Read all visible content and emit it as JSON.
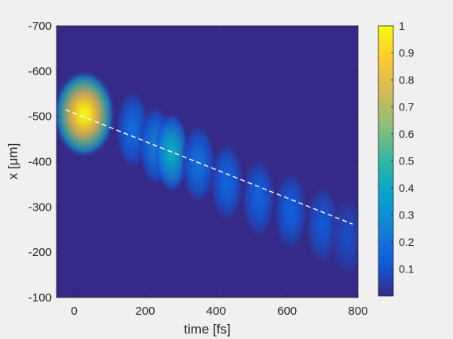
{
  "chart_data": {
    "type": "heatmap",
    "xlabel": "time [fs]",
    "ylabel": "x [μm]",
    "xlim": [
      -50,
      800
    ],
    "ylim": [
      -700,
      -100
    ],
    "y_direction": "reversed",
    "x_ticks": [
      0,
      200,
      400,
      600,
      800
    ],
    "y_ticks": [
      -700,
      -600,
      -500,
      -400,
      -300,
      -200,
      -100
    ],
    "colorbar": {
      "range": [
        0,
        1
      ],
      "ticks": [
        0.1,
        0.2,
        0.3,
        0.4,
        0.5,
        0.6,
        0.7,
        0.8,
        0.9,
        1
      ],
      "colormap": "parula",
      "colors": [
        "#352a87",
        "#0f5cdd",
        "#1481d6",
        "#06a4ca",
        "#2eb7a4",
        "#87bf77",
        "#d1bb59",
        "#fec832",
        "#f9fb0e"
      ]
    },
    "blobs": [
      {
        "t": 28,
        "x": -505,
        "intensity": 1.0
      },
      {
        "t": 165,
        "x": -470,
        "intensity": 0.18
      },
      {
        "t": 230,
        "x": -435,
        "intensity": 0.24
      },
      {
        "t": 275,
        "x": -420,
        "intensity": 0.42
      },
      {
        "t": 350,
        "x": -395,
        "intensity": 0.2
      },
      {
        "t": 430,
        "x": -355,
        "intensity": 0.16
      },
      {
        "t": 520,
        "x": -320,
        "intensity": 0.15
      },
      {
        "t": 610,
        "x": -290,
        "intensity": 0.14
      },
      {
        "t": 700,
        "x": -260,
        "intensity": 0.12
      },
      {
        "t": 770,
        "x": -235,
        "intensity": 0.09
      }
    ],
    "trend_line": {
      "x": [
        -25,
        785
      ],
      "y": [
        -515,
        -262
      ],
      "color": "#ffffff",
      "style": "dashed"
    },
    "background_color": "#352a87",
    "grid": false
  }
}
